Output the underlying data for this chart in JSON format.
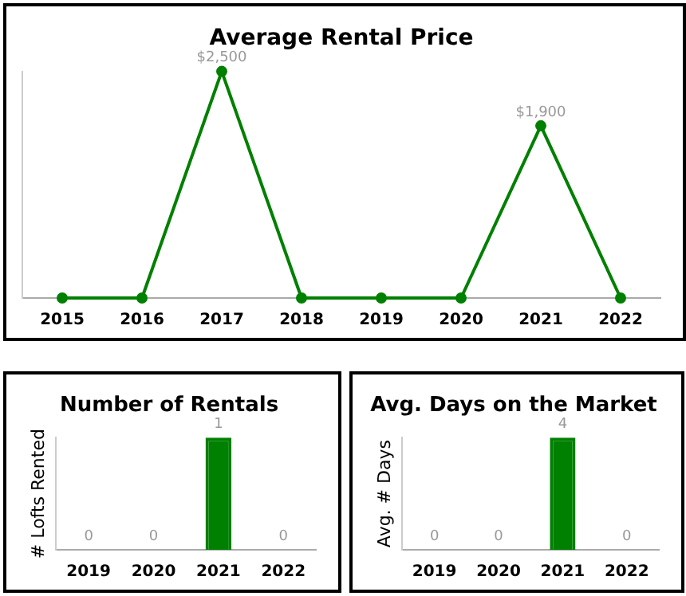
{
  "chart_data": [
    {
      "type": "line",
      "title": "Average Rental Price",
      "categories": [
        "2015",
        "2016",
        "2017",
        "2018",
        "2019",
        "2020",
        "2021",
        "2022"
      ],
      "series": [
        {
          "color": "#008000",
          "values": [
            0,
            0,
            2500,
            0,
            0,
            0,
            1900,
            0
          ],
          "value_labels": [
            null,
            null,
            "$2,500",
            null,
            null,
            null,
            "$1,900",
            null
          ]
        }
      ],
      "marker": "circle",
      "grid": false,
      "legend": false,
      "tick_labels": "x"
    },
    {
      "type": "bar",
      "title": "Number of Rentals",
      "ylabel": "# Lofts Rented",
      "categories": [
        "2019",
        "2020",
        "2021",
        "2022"
      ],
      "series": [
        {
          "color": "#008000",
          "values": [
            0,
            0,
            1,
            0
          ]
        }
      ],
      "data_labels": true,
      "grid": false,
      "legend": false,
      "tick_labels": "x"
    },
    {
      "type": "bar",
      "title": "Avg. Days on the Market",
      "ylabel": "Avg. # Days",
      "categories": [
        "2019",
        "2020",
        "2021",
        "2022"
      ],
      "series": [
        {
          "color": "#008000",
          "values": [
            0,
            0,
            4,
            0
          ]
        }
      ],
      "data_labels": true,
      "grid": false,
      "legend": false,
      "tick_labels": "x"
    }
  ]
}
